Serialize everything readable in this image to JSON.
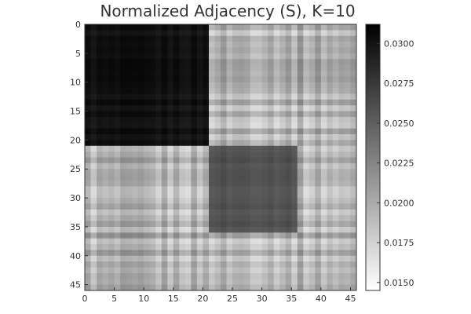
{
  "chart_data": {
    "type": "heatmap",
    "title": "Normalized Adjacency (S), K=10",
    "xlabel": "",
    "ylabel": "",
    "colormap": "grayscale (white = low, black = high)",
    "n": 46,
    "xlim": [
      0,
      46
    ],
    "ylim": [
      46,
      0
    ],
    "x_ticks": [
      "0",
      "5",
      "10",
      "15",
      "20",
      "25",
      "30",
      "35",
      "40",
      "45"
    ],
    "y_ticks": [
      "0",
      "5",
      "10",
      "15",
      "20",
      "25",
      "30",
      "35",
      "40",
      "45"
    ],
    "colorbar": {
      "range": [
        0.0145,
        0.0312
      ],
      "ticks": [
        "0.0150",
        "0.0175",
        "0.0200",
        "0.0225",
        "0.0250",
        "0.0275",
        "0.0300"
      ]
    },
    "blocks": [
      {
        "rows": [
          0,
          20
        ],
        "cols": [
          0,
          20
        ],
        "approx_value": 0.03
      },
      {
        "rows": [
          21,
          35
        ],
        "cols": [
          21,
          35
        ],
        "approx_value": 0.026
      },
      {
        "rows": [
          36,
          45
        ],
        "cols": [
          36,
          45
        ],
        "approx_value": 0.0195
      }
    ],
    "off_diagonal_approx_value": 0.0195,
    "grid": false
  },
  "colors": {
    "background": "#ffffff",
    "axis": "#333333",
    "text": "#333333"
  }
}
